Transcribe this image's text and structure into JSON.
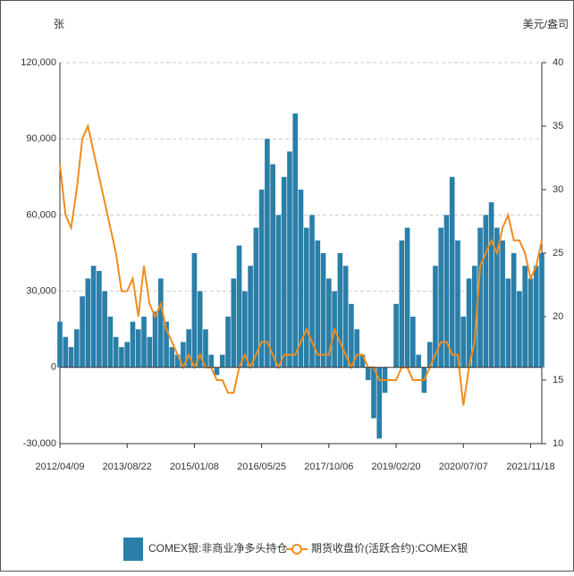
{
  "chart_data": {
    "type": "bar_line",
    "y_label": "张",
    "y2_label": "美元/盎司",
    "categories": [
      "2012/04/09",
      null,
      null,
      null,
      null,
      null,
      null,
      null,
      null,
      null,
      null,
      null,
      "2013/08/22",
      null,
      null,
      null,
      null,
      null,
      null,
      null,
      null,
      null,
      null,
      null,
      "2015/01/08",
      null,
      null,
      null,
      null,
      null,
      null,
      null,
      null,
      null,
      null,
      null,
      "2016/05/25",
      null,
      null,
      null,
      null,
      null,
      null,
      null,
      null,
      null,
      null,
      null,
      "2017/10/06",
      null,
      null,
      null,
      null,
      null,
      null,
      null,
      null,
      null,
      null,
      null,
      "2019/02/20",
      null,
      null,
      null,
      null,
      null,
      null,
      null,
      null,
      null,
      null,
      null,
      "2020/07/07",
      null,
      null,
      null,
      null,
      null,
      null,
      null,
      null,
      null,
      null,
      null,
      "2021/11/18",
      null,
      null
    ],
    "series": [
      {
        "name": "COMEX银:非商业净多头持仓",
        "type": "bar",
        "color": "#2a7fa8",
        "values": [
          18000,
          12000,
          8000,
          15000,
          28000,
          35000,
          40000,
          38000,
          30000,
          20000,
          12000,
          8000,
          10000,
          18000,
          15000,
          20000,
          12000,
          22000,
          35000,
          18000,
          8000,
          5000,
          10000,
          15000,
          45000,
          30000,
          15000,
          5000,
          -3000,
          5000,
          20000,
          35000,
          48000,
          30000,
          40000,
          55000,
          70000,
          90000,
          80000,
          60000,
          75000,
          85000,
          100000,
          70000,
          55000,
          60000,
          50000,
          45000,
          35000,
          30000,
          45000,
          40000,
          25000,
          15000,
          5000,
          -5000,
          -20000,
          -28000,
          -10000,
          0,
          25000,
          50000,
          55000,
          20000,
          5000,
          -10000,
          10000,
          40000,
          55000,
          60000,
          75000,
          50000,
          20000,
          35000,
          40000,
          55000,
          60000,
          65000,
          55000,
          50000,
          35000,
          45000,
          30000,
          40000,
          35000,
          40000,
          45000
        ]
      },
      {
        "name": "期货收盘价(活跃合约):COMEX银",
        "type": "line",
        "axis": "y2",
        "color": "#f08c1e",
        "values": [
          32,
          28,
          27,
          30,
          34,
          35,
          33,
          31,
          29,
          27,
          25,
          22,
          22,
          23,
          20,
          24,
          21,
          20,
          21,
          19,
          18,
          17,
          16,
          17,
          16,
          17,
          16,
          16,
          15,
          15,
          14,
          14,
          16,
          17,
          16,
          17,
          18,
          18,
          17,
          16,
          17,
          17,
          17,
          18,
          19,
          18,
          17,
          17,
          17,
          19,
          18,
          17,
          16,
          17,
          17,
          16,
          16,
          15,
          15,
          15,
          15,
          16,
          16,
          15,
          15,
          15,
          16,
          17,
          18,
          18,
          17,
          17,
          13,
          16,
          18,
          24,
          25,
          26,
          25,
          27,
          28,
          26,
          26,
          25,
          23,
          24,
          26
        ]
      }
    ],
    "ylim": [
      -30000,
      120000
    ],
    "yticks": [
      {
        "value": -30000,
        "label": "-30,000"
      },
      0,
      {
        "value": 30000,
        "label": "30,000"
      },
      {
        "value": 60000,
        "label": "60,000"
      },
      {
        "value": 90000,
        "label": "90,000"
      },
      {
        "value": 120000,
        "label": "120,000"
      }
    ],
    "y2lim": [
      10,
      40
    ],
    "y2ticks": [
      10,
      15,
      20,
      25,
      30,
      35,
      40
    ],
    "grid": true,
    "legend": "bottom"
  }
}
